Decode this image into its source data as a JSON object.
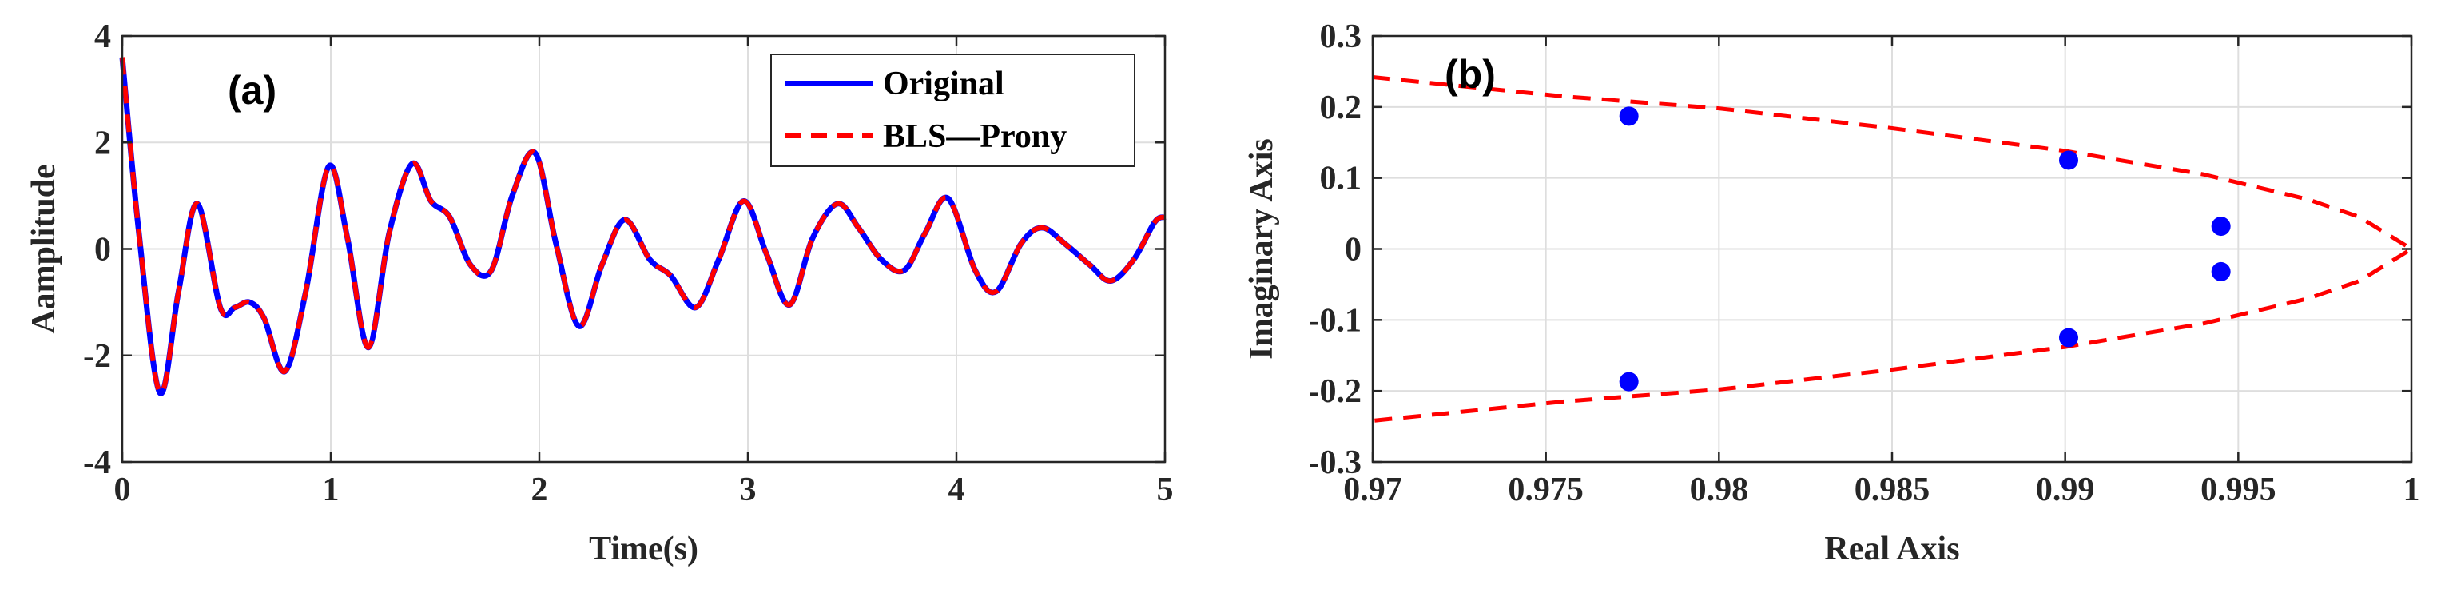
{
  "chart_data": [
    {
      "type": "line",
      "panel_label": "(a)",
      "xlabel": "Time(s)",
      "ylabel": "Aamplitude",
      "xlim": [
        0,
        5
      ],
      "ylim": [
        -4,
        4
      ],
      "xticks": [
        0,
        1,
        2,
        3,
        4,
        5
      ],
      "yticks": [
        -4,
        -2,
        0,
        2,
        4
      ],
      "xtick_labels": [
        "0",
        "1",
        "2",
        "3",
        "4",
        "5"
      ],
      "ytick_labels": [
        "-4",
        "-2",
        "0",
        "2",
        "4"
      ],
      "grid": true,
      "legend_position": "top-right",
      "series": [
        {
          "name": "Original",
          "color": "#0000ff",
          "style": "solid",
          "x": [
            0,
            0.08,
            0.18,
            0.27,
            0.36,
            0.47,
            0.54,
            0.61,
            0.68,
            0.78,
            0.88,
            0.99,
            1.08,
            1.18,
            1.28,
            1.39,
            1.48,
            1.57,
            1.67,
            1.77,
            1.87,
            1.98,
            2.08,
            2.19,
            2.3,
            2.41,
            2.53,
            2.63,
            2.75,
            2.86,
            2.98,
            3.09,
            3.2,
            3.31,
            3.43,
            3.53,
            3.64,
            3.75,
            3.85,
            3.96,
            4.09,
            4.19,
            4.31,
            4.41,
            4.52,
            4.64,
            4.74,
            4.85,
            4.95,
            5.0
          ],
          "y": [
            3.6,
            0.3,
            -2.7,
            -0.8,
            0.85,
            -1.1,
            -1.1,
            -1.0,
            -1.3,
            -2.3,
            -0.8,
            1.55,
            0.2,
            -1.85,
            0.3,
            1.6,
            0.9,
            0.6,
            -0.3,
            -0.4,
            1.0,
            1.8,
            0.1,
            -1.45,
            -0.3,
            0.55,
            -0.2,
            -0.5,
            -1.1,
            -0.2,
            0.9,
            -0.1,
            -1.05,
            0.2,
            0.85,
            0.4,
            -0.2,
            -0.4,
            0.3,
            0.95,
            -0.4,
            -0.8,
            0.1,
            0.4,
            0.1,
            -0.3,
            -0.6,
            -0.2,
            0.5,
            0.6
          ]
        },
        {
          "name": "BLS—Prony",
          "color": "#ff0000",
          "style": "dashed",
          "same_as": "Original"
        }
      ]
    },
    {
      "type": "scatter",
      "panel_label": "(b)",
      "xlabel": "Real Axis",
      "ylabel": "Imaginary Axis",
      "xlim": [
        0.97,
        1
      ],
      "ylim": [
        -0.3,
        0.3
      ],
      "xticks": [
        0.97,
        0.975,
        0.98,
        0.985,
        0.99,
        0.995,
        1
      ],
      "yticks": [
        -0.3,
        -0.2,
        -0.1,
        0,
        0.1,
        0.2,
        0.3
      ],
      "xtick_labels": [
        "0.97",
        "0.975",
        "0.98",
        "0.985",
        "0.99",
        "0.995",
        "1"
      ],
      "ytick_labels": [
        "-0.3",
        "-0.2",
        "-0.1",
        "0",
        "0.1",
        "0.2",
        "0.3"
      ],
      "grid": true,
      "points": {
        "color": "#0000ff",
        "x": [
          0.9774,
          0.9774,
          0.9901,
          0.9901,
          0.9945,
          0.9945
        ],
        "y": [
          0.187,
          -0.187,
          0.125,
          -0.125,
          0.032,
          -0.032
        ]
      },
      "boundary_curve": {
        "color": "#ff0000",
        "style": "dashed",
        "x": [
          0.97,
          0.9755,
          0.98,
          0.985,
          0.99,
          0.994,
          0.997,
          0.9985,
          1.0,
          0.9985,
          0.997,
          0.994,
          0.99,
          0.985,
          0.98,
          0.9755,
          0.97
        ],
        "y": [
          0.242,
          0.215,
          0.198,
          0.17,
          0.138,
          0.105,
          0.07,
          0.045,
          0.0,
          -0.045,
          -0.07,
          -0.105,
          -0.138,
          -0.17,
          -0.198,
          -0.215,
          -0.242
        ]
      }
    }
  ]
}
